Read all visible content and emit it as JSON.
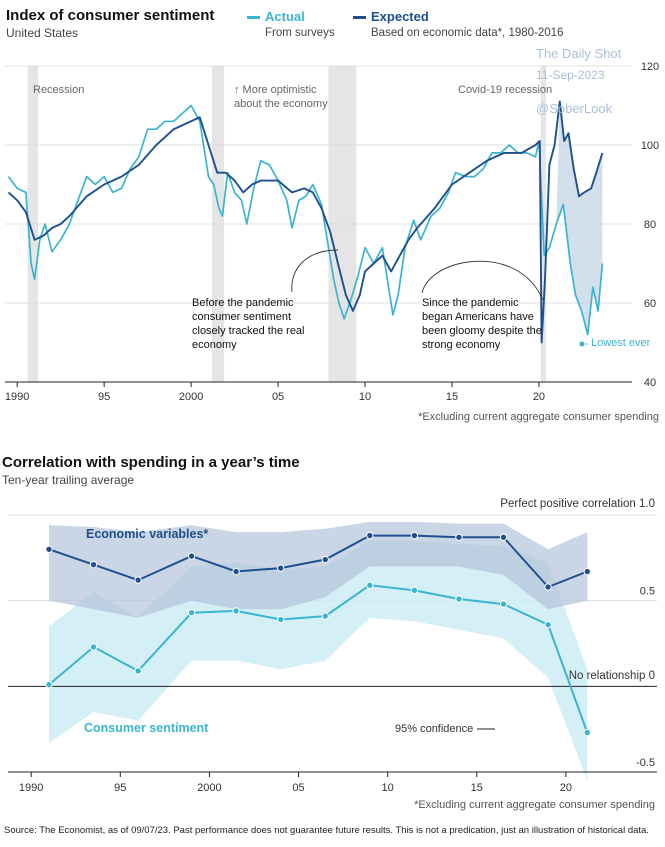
{
  "source": "Source: The Economist, as of 09/07/23. Past performance does not guarantee future results. This is not a predication, just an illustration of historical data.",
  "colors": {
    "actual": "#3bb4d0",
    "expected": "#1f4f8f",
    "recession": "#e5e5e5",
    "band_light": "#cdecf4",
    "band_dark": "#b8c8de",
    "expected_fill": "#c6d4e6"
  },
  "watermark": {
    "line1": "The Daily Shot",
    "line2": "11-Sep-2023",
    "line3": "@SoberLook"
  },
  "chart1": {
    "title": "Index of consumer sentiment",
    "subtitle": "United States",
    "legend": [
      {
        "label": "Actual",
        "desc": "From surveys"
      },
      {
        "label": "Expected",
        "desc": "Based on economic data*, 1980-2016"
      }
    ],
    "recession_label": "Recession",
    "covid_label": "Covid-19 recession",
    "optimistic_label": "↑ More optimistic about the economy",
    "annotation_left": "Before the pandemic consumer sentiment closely tracked the real economy",
    "annotation_right": "Since the pandemic began Americans have been gloomy despite the strong economy",
    "lowest_label": "Lowest ever",
    "footnote": "*Excluding current aggregate consumer spending"
  },
  "chart2": {
    "title": "Correlation with spending in a year’s time",
    "subtitle": "Ten-year trailing average",
    "label_perfect": "Perfect positive correlation 1.0",
    "label_none": "No relationship 0",
    "label_econ": "Economic variables*",
    "label_cons": "Consumer sentiment",
    "label_conf": "95% confidence",
    "footnote": "*Excluding current aggregate consumer spending"
  },
  "chart_data": [
    {
      "type": "line",
      "title": "Index of consumer sentiment",
      "subtitle": "United States",
      "x_range": [
        1989.3,
        2024.2
      ],
      "ylim": [
        40,
        120
      ],
      "yticks": [
        40,
        60,
        80,
        100,
        120
      ],
      "xticks": [
        "1990",
        "95",
        "2000",
        "05",
        "10",
        "15",
        "20"
      ],
      "xtick_years": [
        1990,
        1995,
        2000,
        2005,
        2010,
        2015,
        2020
      ],
      "recessions": [
        [
          1990.6,
          1991.2
        ],
        [
          2001.2,
          2001.9
        ],
        [
          2007.9,
          2009.5
        ],
        [
          2020.1,
          2020.4
        ]
      ],
      "series": [
        {
          "name": "Actual",
          "x": [
            1989.5,
            1990.0,
            1990.5,
            1990.8,
            1991.0,
            1991.3,
            1991.6,
            1992.0,
            1992.5,
            1993.0,
            1993.5,
            1994.0,
            1994.5,
            1995.0,
            1995.5,
            1996.0,
            1996.5,
            1997.0,
            1997.5,
            1998.0,
            1998.5,
            1999.0,
            1999.5,
            2000.0,
            2000.5,
            2001.0,
            2001.3,
            2001.6,
            2001.8,
            2002.1,
            2002.5,
            2002.9,
            2003.2,
            2003.6,
            2004.0,
            2004.5,
            2005.0,
            2005.5,
            2005.8,
            2006.2,
            2006.6,
            2007.0,
            2007.5,
            2007.9,
            2008.2,
            2008.5,
            2008.8,
            2009.2,
            2009.6,
            2010.0,
            2010.5,
            2011.0,
            2011.6,
            2011.9,
            2012.3,
            2012.8,
            2013.2,
            2013.8,
            2014.3,
            2014.8,
            2015.2,
            2015.8,
            2016.3,
            2016.8,
            2017.3,
            2017.8,
            2018.3,
            2018.8,
            2019.3,
            2019.8,
            2020.0,
            2020.3,
            2020.6,
            2021.0,
            2021.4,
            2021.8,
            2022.1,
            2022.45,
            2022.8,
            2023.1,
            2023.4,
            2023.65
          ],
          "y": [
            92,
            89,
            88,
            70,
            66,
            76,
            80,
            73,
            76,
            80,
            86,
            92,
            90,
            92,
            88,
            89,
            94,
            97,
            104,
            104,
            106,
            106,
            108,
            110,
            106,
            92,
            90,
            84,
            82,
            93,
            88,
            86,
            80,
            89,
            96,
            95,
            91,
            86,
            79,
            86,
            87,
            90,
            85,
            74,
            66,
            60,
            56,
            61,
            67,
            74,
            70,
            74,
            57,
            62,
            74,
            81,
            76,
            82,
            84,
            88,
            93,
            92,
            92,
            94,
            98,
            98,
            100,
            98,
            98,
            97,
            101,
            72,
            74,
            80,
            85,
            70,
            62,
            58,
            52,
            64,
            58,
            70
          ]
        },
        {
          "name": "Expected",
          "x": [
            1989.5,
            1990.0,
            1990.5,
            1991.0,
            1991.5,
            1992.0,
            1992.5,
            1993.0,
            1994.0,
            1995.0,
            1996.0,
            1997.0,
            1998.0,
            1999.0,
            2000.0,
            2000.5,
            2001.0,
            2001.5,
            2002.0,
            2002.5,
            2003.0,
            2003.5,
            2004.0,
            2005.0,
            2005.8,
            2006.5,
            2007.0,
            2007.5,
            2008.0,
            2008.5,
            2008.9,
            2009.3,
            2009.7,
            2010.0,
            2010.5,
            2011.0,
            2011.5,
            2012.0,
            2012.5,
            2013.0,
            2014.0,
            2015.0,
            2016.0,
            2017.0,
            2018.0,
            2019.0,
            2019.8,
            2020.05,
            2020.15,
            2020.35,
            2020.6,
            2020.9,
            2021.2,
            2021.45,
            2021.7,
            2022.0,
            2022.3,
            2022.6,
            2023.0,
            2023.3,
            2023.65
          ],
          "y": [
            88,
            86,
            83,
            76,
            77,
            79,
            80,
            82,
            87,
            90,
            92,
            95,
            100,
            104,
            106,
            107,
            100,
            93,
            93,
            91,
            88,
            90,
            91,
            91,
            88,
            89,
            88,
            84,
            78,
            69,
            62,
            58,
            62,
            68,
            70,
            72,
            68,
            72,
            76,
            79,
            84,
            90,
            93,
            96,
            98,
            98,
            100,
            101,
            50,
            66,
            95,
            100,
            111,
            101,
            103,
            94,
            87,
            88,
            89,
            93,
            98
          ]
        }
      ]
    },
    {
      "type": "line",
      "title": "Correlation with spending in a year’s time",
      "subtitle": "Ten-year trailing average",
      "x_range": [
        1988.7,
        2025.0
      ],
      "ylim": [
        -0.5,
        1.0
      ],
      "yticks": [
        -0.5,
        0,
        0.5,
        1.0
      ],
      "xticks": [
        "1990",
        "95",
        "2000",
        "05",
        "10",
        "15",
        "20"
      ],
      "xtick_years": [
        1990,
        1995,
        2000,
        2005,
        2010,
        2015,
        2020
      ],
      "x": [
        1991.0,
        1993.5,
        1996.0,
        1999.0,
        2001.5,
        2004.0,
        2006.5,
        2009.0,
        2011.5,
        2014.0,
        2016.5,
        2019.0,
        2021.2
      ],
      "series": [
        {
          "name": "Economic variables*",
          "values": [
            0.8,
            0.71,
            0.62,
            0.76,
            0.67,
            0.69,
            0.74,
            0.88,
            0.88,
            0.87,
            0.87,
            0.58,
            0.67
          ],
          "ci_low": [
            0.5,
            0.45,
            0.4,
            0.5,
            0.45,
            0.45,
            0.52,
            0.7,
            0.7,
            0.7,
            0.65,
            0.45,
            0.5
          ],
          "ci_high": [
            0.94,
            0.93,
            0.9,
            0.94,
            0.9,
            0.9,
            0.92,
            0.96,
            0.96,
            0.95,
            0.95,
            0.8,
            0.9
          ]
        },
        {
          "name": "Consumer sentiment",
          "values": [
            0.01,
            0.23,
            0.09,
            0.43,
            0.44,
            0.39,
            0.41,
            0.59,
            0.56,
            0.51,
            0.48,
            0.36,
            -0.27
          ],
          "ci_low": [
            -0.33,
            -0.15,
            -0.2,
            0.15,
            0.15,
            0.1,
            0.15,
            0.4,
            0.38,
            0.33,
            0.28,
            0.05,
            -0.55
          ],
          "ci_high": [
            0.35,
            0.55,
            0.4,
            0.7,
            0.72,
            0.68,
            0.7,
            0.85,
            0.85,
            0.83,
            0.82,
            0.72,
            0.1
          ]
        }
      ]
    }
  ]
}
